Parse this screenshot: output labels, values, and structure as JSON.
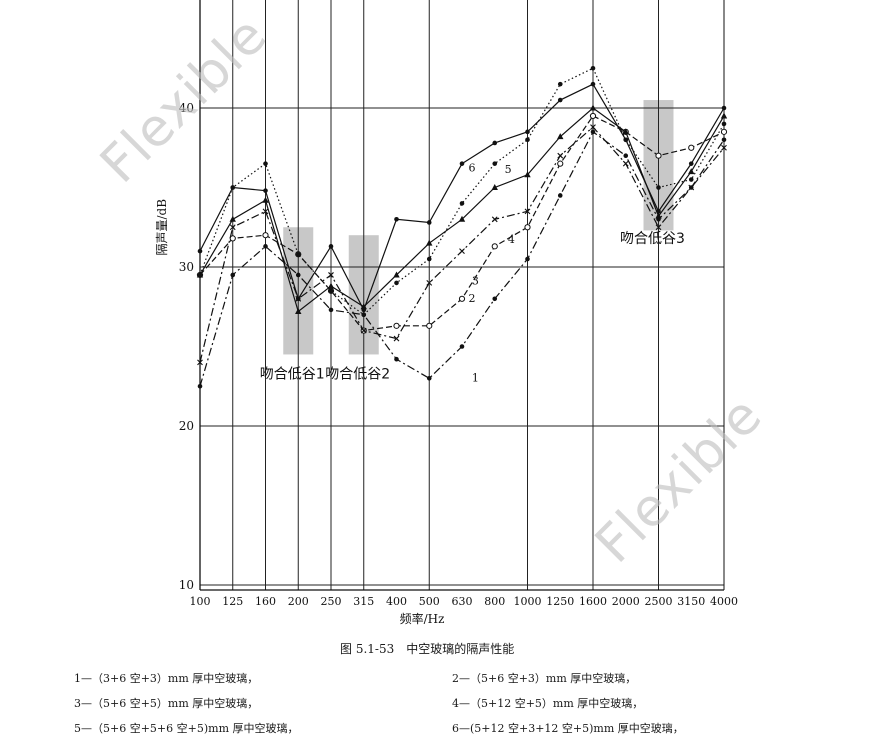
{
  "caption": "图 5.1-53　中空玻璃的隔声性能",
  "legend_lines": [
    "1—（3+6 空+3）mm 厚中空玻璃，",
    "2—（5+6 空+3）mm 厚中空玻璃，",
    "3—（5+6 空+5）mm 厚中空玻璃，",
    "4—（5+12 空+5）mm 厚中空玻璃，",
    "5—（5+6 空+5+6 空+5)mm 厚中空玻璃，",
    "6—(5+12 空+3+12 空+5)mm 厚中空玻璃，"
  ],
  "watermarks": [
    "Flexible",
    "Flexible"
  ],
  "chart_data": {
    "type": "line",
    "title": "",
    "xlabel": "频率/Hz",
    "ylabel": "隔声量/dB",
    "x_scale": "log",
    "categories": [
      "100",
      "125",
      "160",
      "200",
      "250",
      "315",
      "400",
      "500",
      "630",
      "800",
      "1000",
      "1250",
      "1600",
      "2000",
      "2500",
      "3150",
      "4000"
    ],
    "yticks": [
      10,
      20,
      30,
      40
    ],
    "ylim": [
      10,
      48
    ],
    "grid": true,
    "series": [
      {
        "name": "1",
        "style": "dashdot",
        "marker": "dot",
        "values": [
          22.5,
          29.5,
          31.3,
          29.5,
          27.3,
          27.0,
          24.2,
          23.0,
          25.0,
          28.0,
          30.5,
          34.5,
          38.5,
          37.0,
          33.0,
          35.0,
          38.0
        ]
      },
      {
        "name": "2",
        "style": "dashed",
        "marker": "circle",
        "values": [
          29.5,
          31.8,
          32.0,
          30.8,
          28.5,
          26.0,
          26.3,
          26.3,
          28.0,
          31.3,
          32.5,
          36.5,
          39.5,
          38.5,
          37.0,
          37.5,
          38.5
        ]
      },
      {
        "name": "3",
        "style": "dashdot",
        "marker": "cross",
        "values": [
          24.0,
          32.5,
          33.5,
          28.0,
          29.5,
          26.0,
          25.5,
          29.0,
          31.0,
          33.0,
          33.5,
          37.0,
          38.8,
          36.5,
          32.5,
          35.0,
          37.5
        ]
      },
      {
        "name": "4",
        "style": "solid",
        "marker": "triangle",
        "values": [
          29.5,
          33.0,
          34.2,
          27.2,
          28.8,
          27.5,
          29.5,
          31.5,
          33.0,
          35.0,
          35.8,
          38.2,
          40.0,
          38.5,
          33.2,
          36.0,
          39.5
        ]
      },
      {
        "name": "5",
        "style": "dotted",
        "marker": "dot",
        "values": [
          29.5,
          35.0,
          36.5,
          30.8,
          28.5,
          27.0,
          29.0,
          30.5,
          34.0,
          36.5,
          38.0,
          41.5,
          42.5,
          38.0,
          35.0,
          35.5,
          39.0
        ]
      },
      {
        "name": "6",
        "style": "solid",
        "marker": "dot",
        "values": [
          31.0,
          35.0,
          34.8,
          28.0,
          31.3,
          27.3,
          33.0,
          32.8,
          36.5,
          37.8,
          38.5,
          40.5,
          41.5,
          38.0,
          33.5,
          36.5,
          40.0
        ]
      }
    ],
    "annotations": [
      {
        "label": "吻合低谷1",
        "x": "200",
        "y": 23.0
      },
      {
        "label": "吻合低谷2",
        "x": "315",
        "y": 23.0
      },
      {
        "label": "吻合低谷3",
        "x": "2500",
        "y": 31.5
      }
    ],
    "shaded_bands": [
      {
        "x": "200",
        "y_from": 24.5,
        "y_to": 32.5
      },
      {
        "x": "315",
        "y_from": 24.5,
        "y_to": 32.0
      },
      {
        "x": "2500",
        "y_from": 32.3,
        "y_to": 40.5
      }
    ]
  }
}
